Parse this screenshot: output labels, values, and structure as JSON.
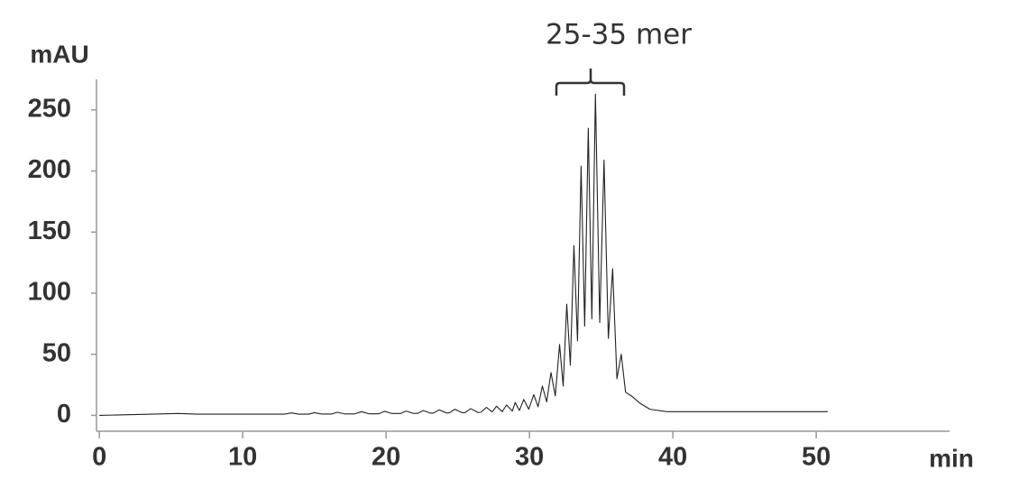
{
  "chart_data": {
    "type": "line",
    "y_label": "mAU",
    "x_label": "min",
    "annotation": "25-35 mer",
    "xlim": [
      -0.2,
      59.3
    ],
    "ylim": [
      -13,
      275
    ],
    "xticks": [
      0,
      10,
      20,
      30,
      40,
      50
    ],
    "yticks": [
      0,
      50,
      100,
      150,
      200,
      250
    ],
    "color": "#222222",
    "x": [
      0,
      3,
      5.5,
      6.8,
      12.9,
      13.4,
      13.9,
      14.6,
      15,
      15.5,
      16.2,
      16.6,
      17.1,
      17.8,
      18.3,
      18.8,
      19.5,
      19.9,
      20.4,
      21,
      21.4,
      21.9,
      22.2,
      22.6,
      23.1,
      23.3,
      23.7,
      24.2,
      24.4,
      24.8,
      25.3,
      25.5,
      25.9,
      26.4,
      26.6,
      27,
      27.4,
      27.7,
      28.1,
      28.4,
      28.8,
      29,
      29.3,
      29.6,
      29.95,
      30.3,
      30.6,
      30.9,
      31.2,
      31.5,
      31.8,
      32.1,
      32.35,
      32.6,
      32.85,
      33.1,
      33.35,
      33.6,
      33.85,
      34.1,
      34.35,
      34.6,
      34.9,
      35.2,
      35.5,
      35.8,
      36.1,
      36.4,
      36.7,
      37.1,
      37.7,
      38.4,
      39.6,
      45,
      50.8
    ],
    "values": [
      0,
      0.8,
      1.5,
      1,
      1,
      2,
      1,
      1,
      2.2,
      1.1,
      1.1,
      2.5,
      1.2,
      1.2,
      3,
      1.3,
      1.3,
      3.3,
      1.5,
      1.5,
      3.5,
      1.6,
      1.6,
      4,
      1.8,
      1.8,
      4.5,
      2,
      2,
      5,
      2.2,
      2.2,
      5.5,
      2.4,
      2.5,
      6.5,
      2.8,
      7.5,
      3,
      8.5,
      3.5,
      10.5,
      4,
      13,
      5,
      17,
      7,
      24,
      11,
      35,
      16,
      58,
      24,
      91,
      41,
      139,
      61,
      204,
      73,
      235,
      79,
      263,
      76,
      209,
      63,
      120,
      30,
      50,
      19,
      16,
      10,
      5,
      3,
      3,
      3
    ]
  }
}
